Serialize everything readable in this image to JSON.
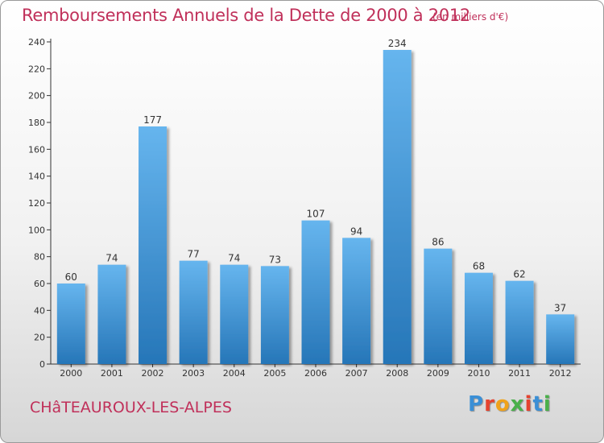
{
  "header": {
    "title": "Remboursements Annuels de la Dette de 2000 à 2012",
    "unit": "(en milliers d'€)"
  },
  "footer": {
    "commune": "CHâTEAUROUX-LES-ALPES",
    "brand": "Proxiti"
  },
  "colors": {
    "title": "#c0305a",
    "bar_top": "#66b5ee",
    "bar_bottom": "#2676b8",
    "axis": "#333333"
  },
  "chart_data": {
    "type": "bar",
    "categories": [
      "2000",
      "2001",
      "2002",
      "2003",
      "2004",
      "2005",
      "2006",
      "2007",
      "2008",
      "2009",
      "2010",
      "2011",
      "2012"
    ],
    "values": [
      60,
      74,
      177,
      77,
      74,
      73,
      107,
      94,
      234,
      86,
      68,
      62,
      37
    ],
    "ylim": [
      0,
      240
    ],
    "yticks": [
      0,
      20,
      40,
      60,
      80,
      100,
      120,
      140,
      160,
      180,
      200,
      220,
      240
    ],
    "grid": false,
    "data_labels": true
  }
}
